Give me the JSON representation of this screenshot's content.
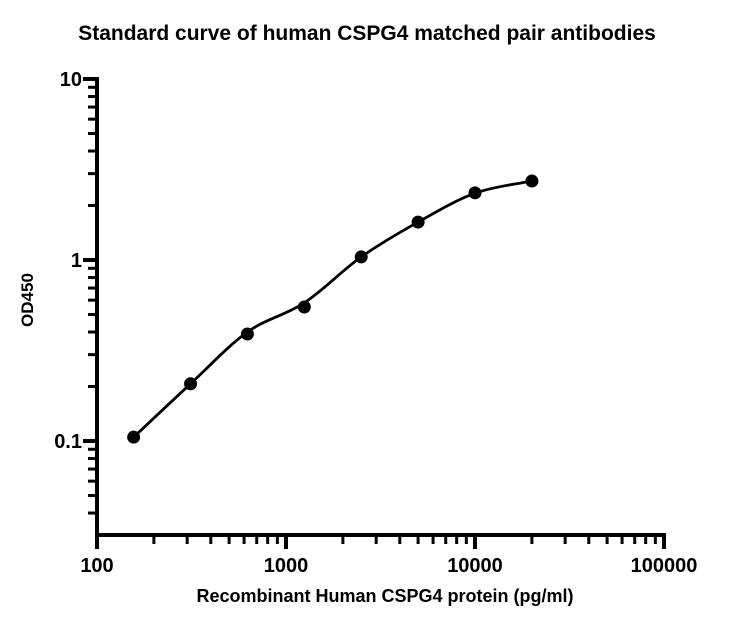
{
  "chart_data": {
    "type": "line",
    "title": "Standard curve of human CSPG4 matched pair antibodies",
    "xlabel": "Recombinant Human CSPG4 protein (pg/ml)",
    "ylabel": "OD450",
    "x_scale": "log10",
    "y_scale": "log10",
    "xlim": [
      100,
      100000
    ],
    "ylim": [
      0.0303,
      10
    ],
    "x_major_ticks": [
      100,
      1000,
      10000,
      100000
    ],
    "x_tick_labels": [
      "100",
      "1000",
      "10000",
      "100000"
    ],
    "y_major_ticks": [
      0.1,
      1,
      10
    ],
    "y_tick_labels": [
      "0.1",
      "1",
      "10"
    ],
    "x": [
      156.25,
      312.5,
      625,
      1250,
      2500,
      5000,
      10000,
      20000
    ],
    "od": [
      0.105,
      0.207,
      0.39,
      0.55,
      1.04,
      1.62,
      2.35,
      2.73
    ],
    "fit_curve_od": [
      0.105,
      0.207,
      0.4,
      0.58,
      1.04,
      1.62,
      2.34,
      2.73
    ],
    "marker_color": "#000000",
    "line_color": "#000000",
    "axis_color": "#000000",
    "background_color": "#ffffff",
    "grid": false,
    "legend": false
  }
}
